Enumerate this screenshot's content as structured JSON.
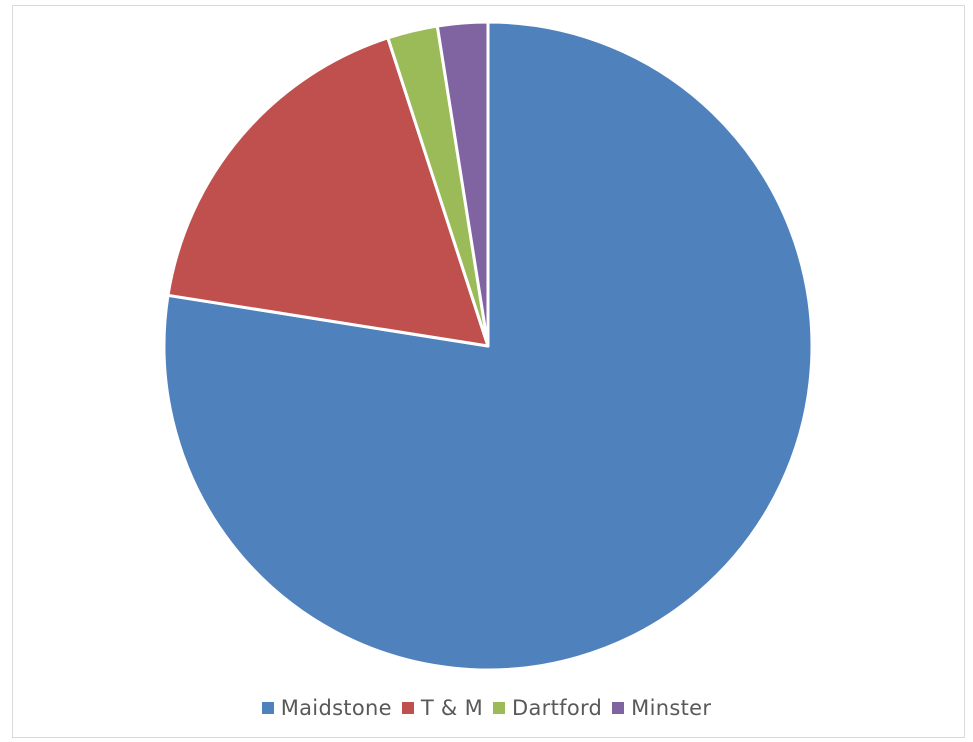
{
  "chart_data": {
    "type": "pie",
    "title": "",
    "categories": [
      "Maidstone",
      "T & M",
      "Dartford",
      "Minster"
    ],
    "values": [
      77.5,
      17.5,
      2.5,
      2.5
    ],
    "colors": [
      "#4f81bd",
      "#c0504d",
      "#9bbb59",
      "#8064a2"
    ],
    "start_angle": "12 o'clock",
    "direction": "clockwise",
    "legend": {
      "position": "bottom",
      "entries": [
        {
          "label": "Maidstone",
          "color": "#4f81bd"
        },
        {
          "label": "T & M",
          "color": "#c0504d"
        },
        {
          "label": "Dartford",
          "color": "#9bbb59"
        },
        {
          "label": "Minster",
          "color": "#8064a2"
        }
      ]
    }
  }
}
